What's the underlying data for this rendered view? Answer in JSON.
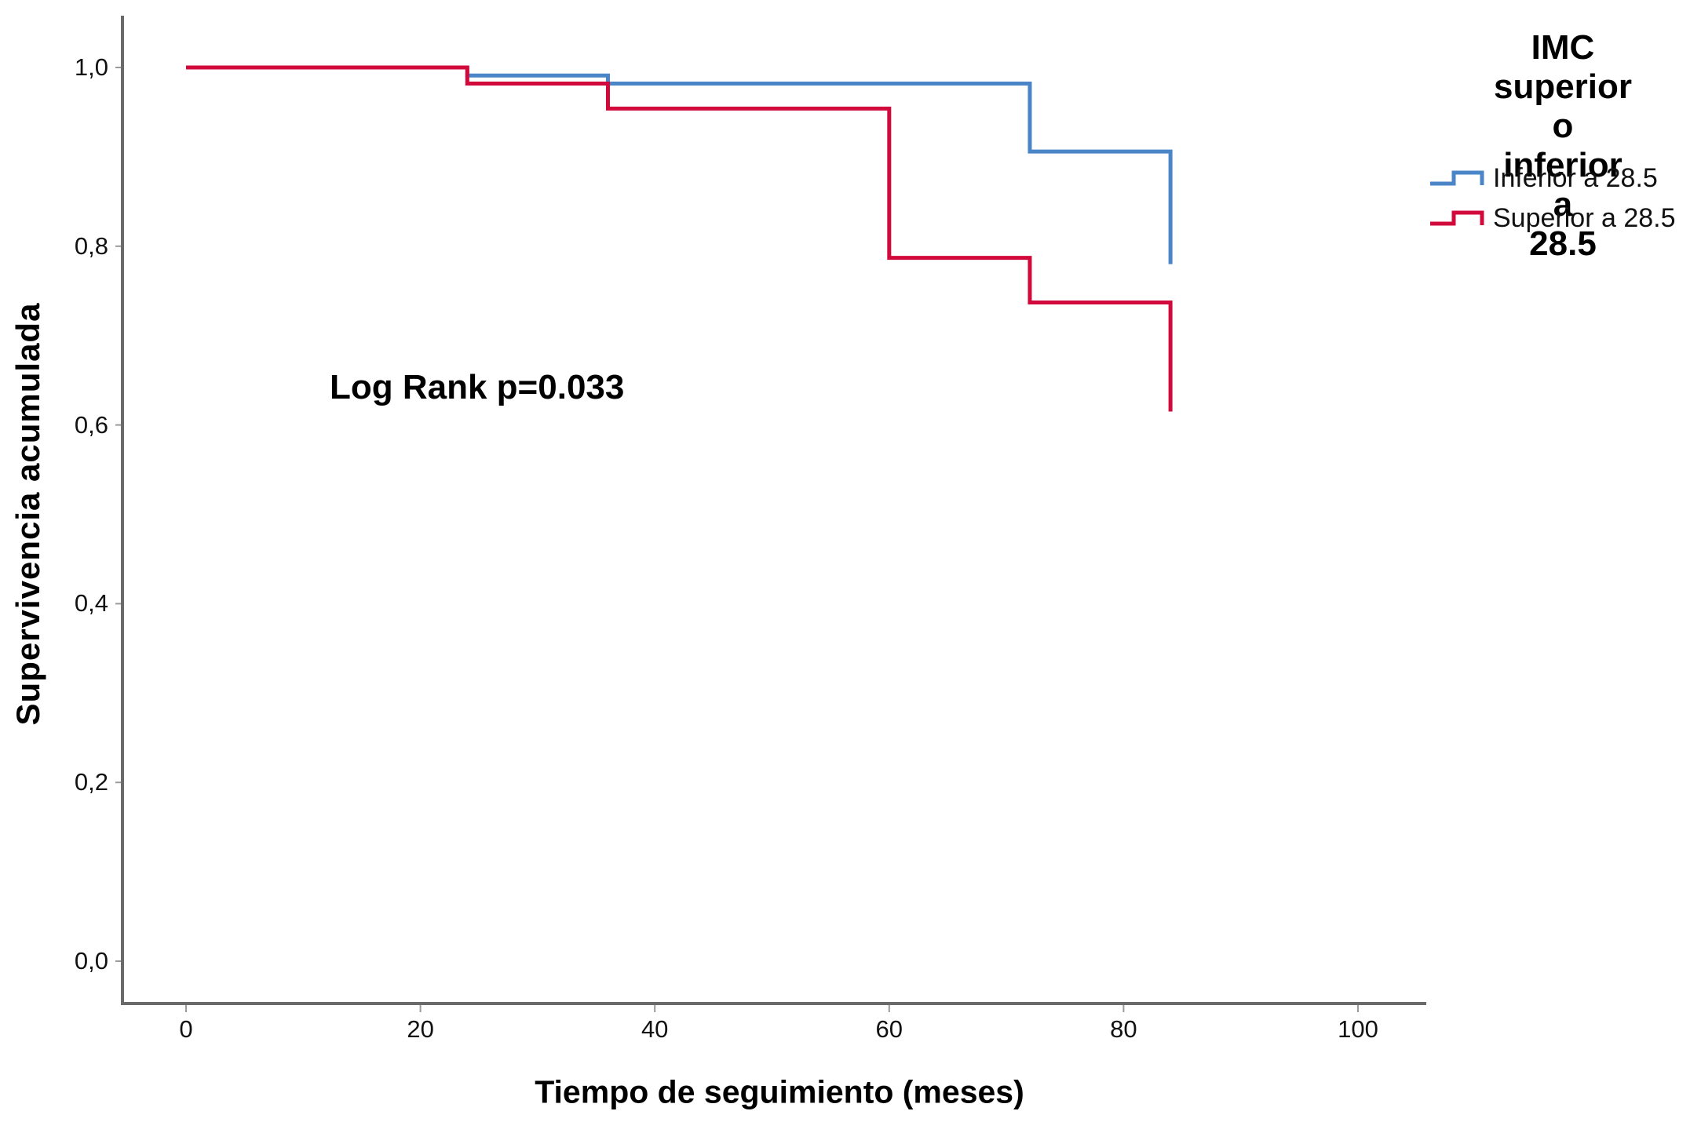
{
  "chart_data": {
    "type": "line",
    "subtype": "kaplan-meier-step",
    "title": "",
    "xlabel": "Tiempo de seguimiento (meses)",
    "ylabel": "Supervivencia acumulada",
    "annotation": "Log Rank p=0.033",
    "x_ticks": [
      0,
      20,
      40,
      60,
      80,
      100
    ],
    "x_tick_labels": [
      "0",
      "20",
      "40",
      "60",
      "80",
      "100"
    ],
    "y_ticks": [
      1.0,
      0.8,
      0.6,
      0.4,
      0.2,
      0.0
    ],
    "y_tick_labels": [
      "1,0",
      "0,8",
      "0,6",
      "0,4",
      "0,2",
      "0,0"
    ],
    "xlim": [
      0,
      107
    ],
    "ylim": [
      0.0,
      1.04
    ],
    "grid": false,
    "legend": {
      "position": "top-right-outside",
      "title": "IMC superior\no inferior a\n28.5"
    },
    "series": [
      {
        "name": "Inferior a 28.5",
        "color": "#4a85c8",
        "steps": [
          [
            0,
            1.0
          ],
          [
            24,
            0.991
          ],
          [
            36,
            0.982
          ],
          [
            72,
            0.906
          ]
        ],
        "end": [
          84,
          0.78
        ]
      },
      {
        "name": "Superior a 28.5",
        "color": "#d20a3c",
        "steps": [
          [
            0,
            1.0
          ],
          [
            24,
            0.982
          ],
          [
            36,
            0.954
          ],
          [
            60,
            0.787
          ],
          [
            72,
            0.737
          ]
        ],
        "end": [
          84,
          0.615
        ]
      }
    ],
    "axis_color": "#6a6a6a",
    "tick_color": "#9a9a9a"
  }
}
